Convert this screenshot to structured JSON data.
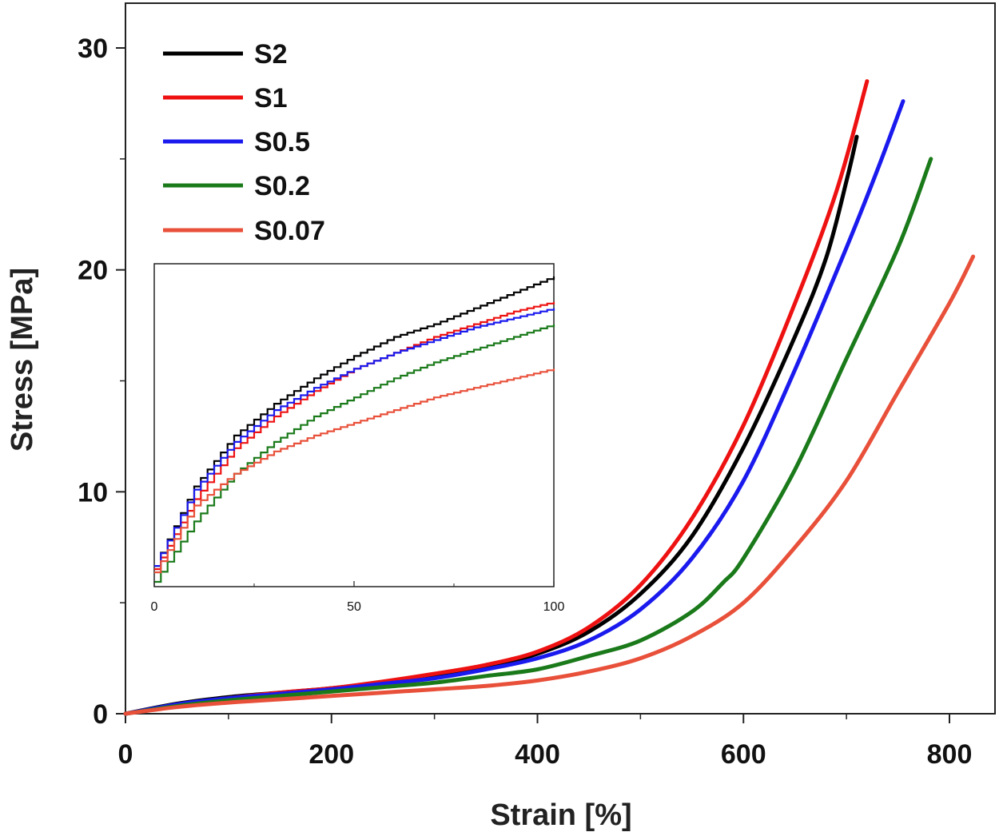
{
  "chart_data": {
    "type": "line",
    "title": "",
    "xlabel": "Strain [%]",
    "ylabel": "Stress [MPa]",
    "xlim": [
      0,
      830
    ],
    "ylim": [
      0,
      32
    ],
    "xticks": [
      0,
      200,
      400,
      600,
      800
    ],
    "yticks": [
      0,
      10,
      20,
      30
    ],
    "x_tick_labels": [
      "0",
      "200",
      "400",
      "600",
      "800"
    ],
    "y_tick_labels": [
      "0",
      "10",
      "20",
      "30"
    ],
    "legend_position": "top-left",
    "series": [
      {
        "name": "S2",
        "color": "#000000",
        "points": [
          [
            0,
            0
          ],
          [
            50,
            0.45
          ],
          [
            100,
            0.75
          ],
          [
            150,
            0.95
          ],
          [
            200,
            1.15
          ],
          [
            250,
            1.4
          ],
          [
            300,
            1.7
          ],
          [
            350,
            2.1
          ],
          [
            400,
            2.7
          ],
          [
            450,
            3.7
          ],
          [
            500,
            5.4
          ],
          [
            550,
            8.0
          ],
          [
            600,
            12.0
          ],
          [
            650,
            17.0
          ],
          [
            680,
            20.5
          ],
          [
            700,
            24.0
          ],
          [
            710,
            26.0
          ]
        ]
      },
      {
        "name": "S1",
        "color": "#ee1111",
        "points": [
          [
            0,
            0
          ],
          [
            50,
            0.4
          ],
          [
            100,
            0.7
          ],
          [
            150,
            0.95
          ],
          [
            200,
            1.15
          ],
          [
            250,
            1.45
          ],
          [
            300,
            1.8
          ],
          [
            350,
            2.2
          ],
          [
            400,
            2.8
          ],
          [
            450,
            3.9
          ],
          [
            500,
            5.8
          ],
          [
            550,
            8.8
          ],
          [
            600,
            13.0
          ],
          [
            650,
            18.5
          ],
          [
            690,
            23.5
          ],
          [
            720,
            28.5
          ]
        ]
      },
      {
        "name": "S0.5",
        "color": "#1a1aee",
        "points": [
          [
            0,
            0
          ],
          [
            50,
            0.42
          ],
          [
            100,
            0.7
          ],
          [
            150,
            0.9
          ],
          [
            200,
            1.1
          ],
          [
            250,
            1.35
          ],
          [
            300,
            1.6
          ],
          [
            350,
            2.0
          ],
          [
            400,
            2.5
          ],
          [
            450,
            3.3
          ],
          [
            500,
            4.7
          ],
          [
            550,
            7.0
          ],
          [
            600,
            10.5
          ],
          [
            650,
            15.5
          ],
          [
            700,
            21.0
          ],
          [
            730,
            24.5
          ],
          [
            755,
            27.6
          ]
        ]
      },
      {
        "name": "S0.2",
        "color": "#1a7a1a",
        "points": [
          [
            0,
            0
          ],
          [
            50,
            0.35
          ],
          [
            100,
            0.6
          ],
          [
            150,
            0.8
          ],
          [
            200,
            1.0
          ],
          [
            250,
            1.2
          ],
          [
            300,
            1.4
          ],
          [
            350,
            1.7
          ],
          [
            400,
            2.0
          ],
          [
            450,
            2.6
          ],
          [
            500,
            3.3
          ],
          [
            550,
            4.6
          ],
          [
            580,
            5.9
          ],
          [
            600,
            7.0
          ],
          [
            650,
            11.0
          ],
          [
            700,
            16.0
          ],
          [
            750,
            21.0
          ],
          [
            782,
            25.0
          ]
        ]
      },
      {
        "name": "S0.07",
        "color": "#e8503a",
        "points": [
          [
            0,
            0
          ],
          [
            50,
            0.3
          ],
          [
            100,
            0.5
          ],
          [
            150,
            0.65
          ],
          [
            200,
            0.8
          ],
          [
            250,
            0.95
          ],
          [
            300,
            1.1
          ],
          [
            350,
            1.25
          ],
          [
            400,
            1.5
          ],
          [
            450,
            1.9
          ],
          [
            500,
            2.5
          ],
          [
            550,
            3.5
          ],
          [
            600,
            5.0
          ],
          [
            650,
            7.5
          ],
          [
            700,
            10.5
          ],
          [
            750,
            14.5
          ],
          [
            800,
            18.5
          ],
          [
            823,
            20.6
          ]
        ]
      }
    ],
    "inset": {
      "type": "line",
      "step": true,
      "xlim": [
        0,
        100
      ],
      "xticks": [
        0,
        50,
        100
      ],
      "x_tick_labels": [
        "0",
        "50",
        "100"
      ],
      "series": [
        {
          "name": "S2",
          "color": "#000000",
          "points": [
            [
              0,
              0.05
            ],
            [
              10,
              0.3
            ],
            [
              20,
              0.46
            ],
            [
              30,
              0.56
            ],
            [
              40,
              0.64
            ],
            [
              50,
              0.71
            ],
            [
              60,
              0.77
            ],
            [
              70,
              0.81
            ],
            [
              80,
              0.86
            ],
            [
              90,
              0.91
            ],
            [
              100,
              0.96
            ]
          ]
        },
        {
          "name": "S1",
          "color": "#ee1111",
          "points": [
            [
              0,
              0.04
            ],
            [
              10,
              0.26
            ],
            [
              20,
              0.42
            ],
            [
              30,
              0.52
            ],
            [
              40,
              0.6
            ],
            [
              50,
              0.67
            ],
            [
              60,
              0.72
            ],
            [
              70,
              0.77
            ],
            [
              80,
              0.81
            ],
            [
              90,
              0.85
            ],
            [
              100,
              0.88
            ]
          ]
        },
        {
          "name": "S0.5",
          "color": "#1a1aee",
          "points": [
            [
              0,
              0.05
            ],
            [
              10,
              0.29
            ],
            [
              20,
              0.44
            ],
            [
              30,
              0.54
            ],
            [
              40,
              0.61
            ],
            [
              50,
              0.67
            ],
            [
              60,
              0.72
            ],
            [
              70,
              0.76
            ],
            [
              80,
              0.8
            ],
            [
              90,
              0.83
            ],
            [
              100,
              0.86
            ]
          ]
        },
        {
          "name": "S0.2",
          "color": "#1a7a1a",
          "points": [
            [
              0,
              0.0
            ],
            [
              10,
              0.19
            ],
            [
              20,
              0.34
            ],
            [
              30,
              0.44
            ],
            [
              40,
              0.52
            ],
            [
              50,
              0.58
            ],
            [
              60,
              0.64
            ],
            [
              70,
              0.69
            ],
            [
              80,
              0.73
            ],
            [
              90,
              0.77
            ],
            [
              100,
              0.81
            ]
          ]
        },
        {
          "name": "S0.07",
          "color": "#e8503a",
          "points": [
            [
              0,
              0.03
            ],
            [
              10,
              0.24
            ],
            [
              20,
              0.34
            ],
            [
              30,
              0.41
            ],
            [
              40,
              0.46
            ],
            [
              50,
              0.5
            ],
            [
              60,
              0.54
            ],
            [
              70,
              0.58
            ],
            [
              80,
              0.61
            ],
            [
              90,
              0.64
            ],
            [
              100,
              0.67
            ]
          ]
        }
      ]
    }
  }
}
